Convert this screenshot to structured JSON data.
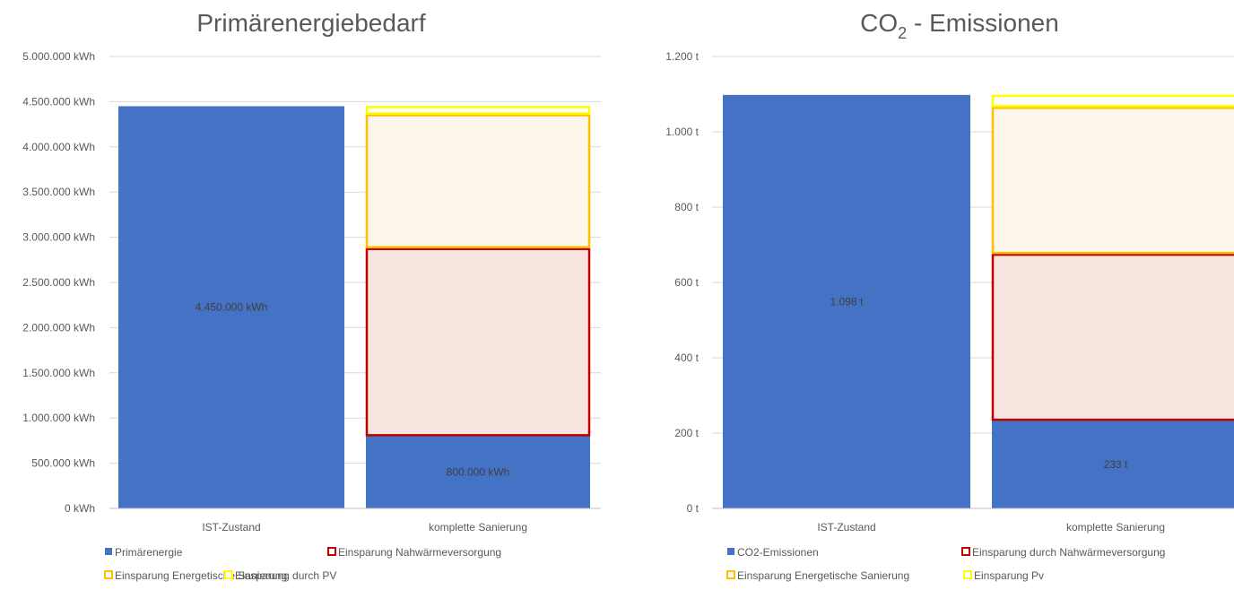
{
  "chart_data": [
    {
      "type": "bar",
      "stacked": true,
      "title": "Primärenergiebedarf",
      "categories": [
        "IST-Zustand",
        "komplette Sanierung"
      ],
      "ylim": [
        0,
        5000000
      ],
      "y_step": 500000,
      "y_unit": "kWh",
      "grid": true,
      "legend_position": "bottom",
      "series": [
        {
          "name": "Primärenergie",
          "values": [
            4450000,
            800000
          ],
          "fill": "#4472C4",
          "stroke": "#4472C4"
        },
        {
          "name": "Einsparung Nahwärmeversorgung",
          "values": [
            0,
            2080000
          ],
          "fill": "#F6E6DF",
          "stroke": "#C00000"
        },
        {
          "name": "Einsparung Energetische Sanierung",
          "values": [
            0,
            1480000
          ],
          "fill": "#FDF6EA",
          "stroke": "#FFC000"
        },
        {
          "name": "Einsparung durch PV",
          "values": [
            0,
            90000
          ],
          "fill": "#FFFFFF",
          "stroke": "#FFFF00"
        }
      ],
      "tick_labels": [
        "0 kWh",
        "500.000 kWh",
        "1.000.000 kWh",
        "1.500.000 kWh",
        "2.000.000 kWh",
        "2.500.000 kWh",
        "3.000.000 kWh",
        "3.500.000 kWh",
        "4.000.000 kWh",
        "4.500.000 kWh",
        "5.000.000 kWh"
      ],
      "data_labels": [
        {
          "category": 0,
          "text": "4.450.000 kWh"
        },
        {
          "category": 1,
          "text": "800.000 kWh"
        }
      ]
    },
    {
      "type": "bar",
      "stacked": true,
      "title_main": "CO",
      "title_sub": "2",
      "title_rest": " - Emissionen",
      "categories": [
        "IST-Zustand",
        "komplette Sanierung"
      ],
      "ylim": [
        0,
        1200
      ],
      "y_step": 200,
      "y_unit": "t",
      "grid": true,
      "legend_position": "bottom",
      "series": [
        {
          "name": "CO2-Emissionen",
          "values": [
            1098,
            233
          ],
          "fill": "#4472C4",
          "stroke": "#4472C4"
        },
        {
          "name": "Einsparung durch Nahwärmeversorgung",
          "values": [
            0,
            443
          ],
          "fill": "#F6E6DF",
          "stroke": "#C00000"
        },
        {
          "name": "Einsparung Energetische Sanierung",
          "values": [
            0,
            390
          ],
          "fill": "#FDF6EA",
          "stroke": "#FFC000"
        },
        {
          "name": "Einsparung Pv",
          "values": [
            0,
            32
          ],
          "fill": "#FFFFFF",
          "stroke": "#FFFF00"
        }
      ],
      "tick_labels": [
        "0 t",
        "200 t",
        "400 t",
        "600 t",
        "800 t",
        "1.000 t",
        "1.200 t"
      ],
      "data_labels": [
        {
          "category": 0,
          "text": "1.098 t"
        },
        {
          "category": 1,
          "text": "233 t"
        }
      ]
    }
  ]
}
